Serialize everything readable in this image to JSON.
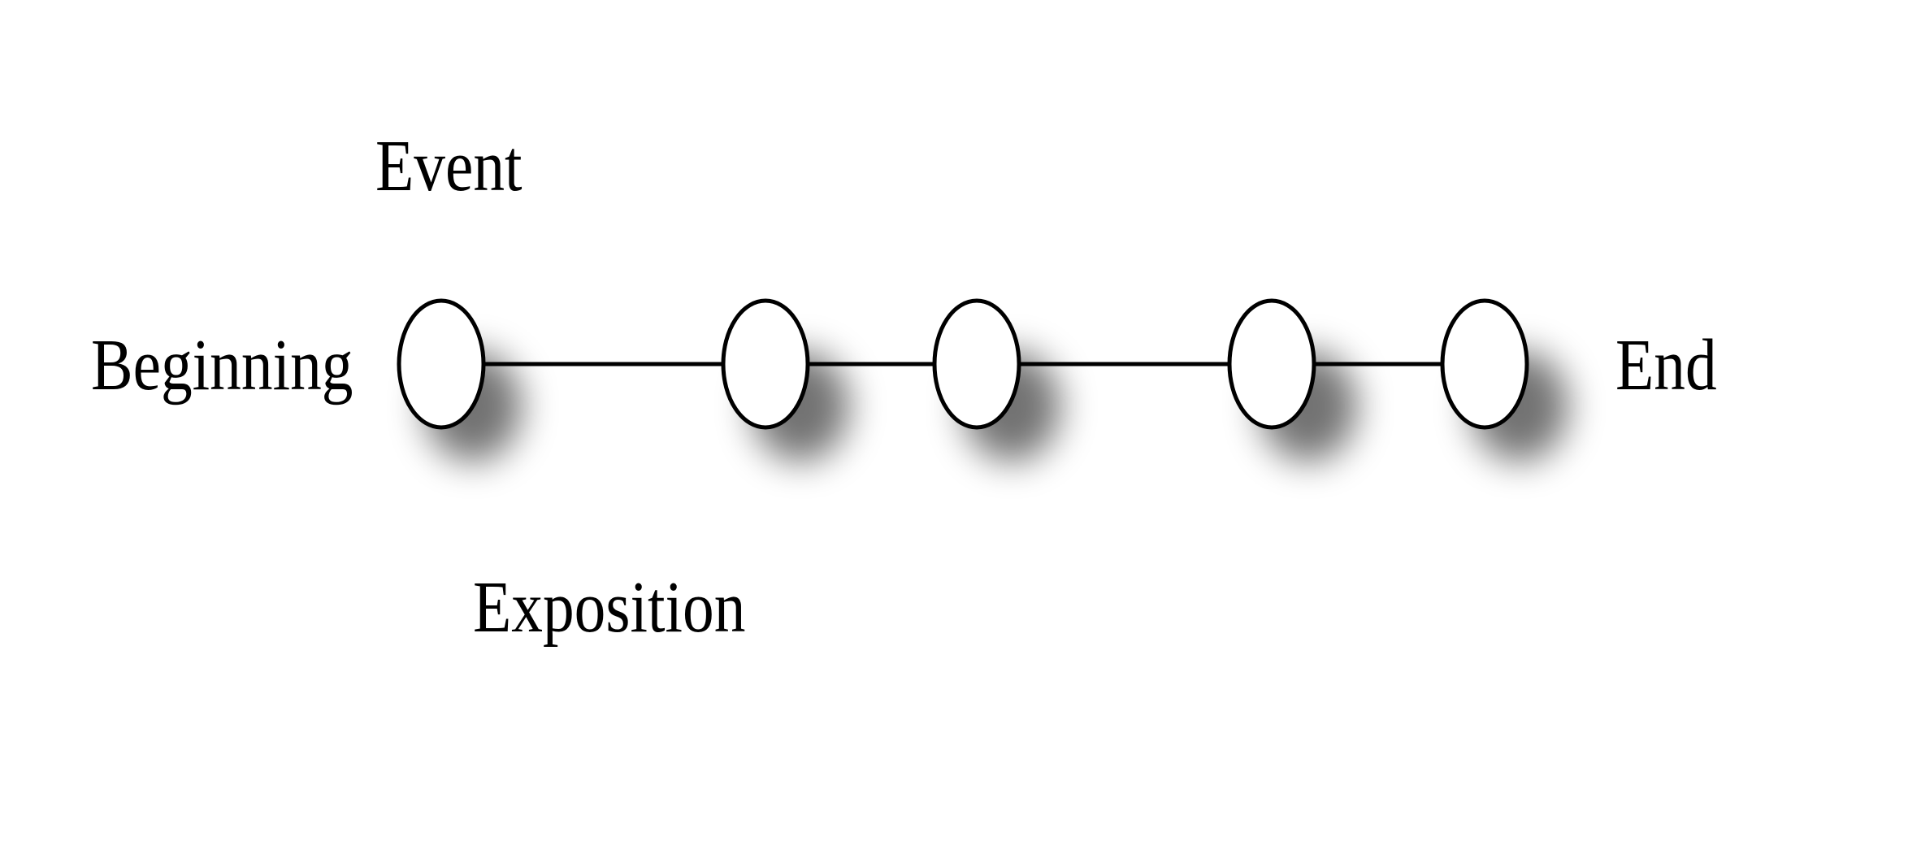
{
  "diagram": {
    "labels": {
      "event": "Event",
      "beginning": "Beginning",
      "end": "End",
      "exposition": "Exposition"
    },
    "node_count": 5,
    "colors": {
      "node_fill": "#ffffff",
      "stroke": "#000000",
      "shadow": "#000000",
      "background": "#ffffff"
    }
  }
}
